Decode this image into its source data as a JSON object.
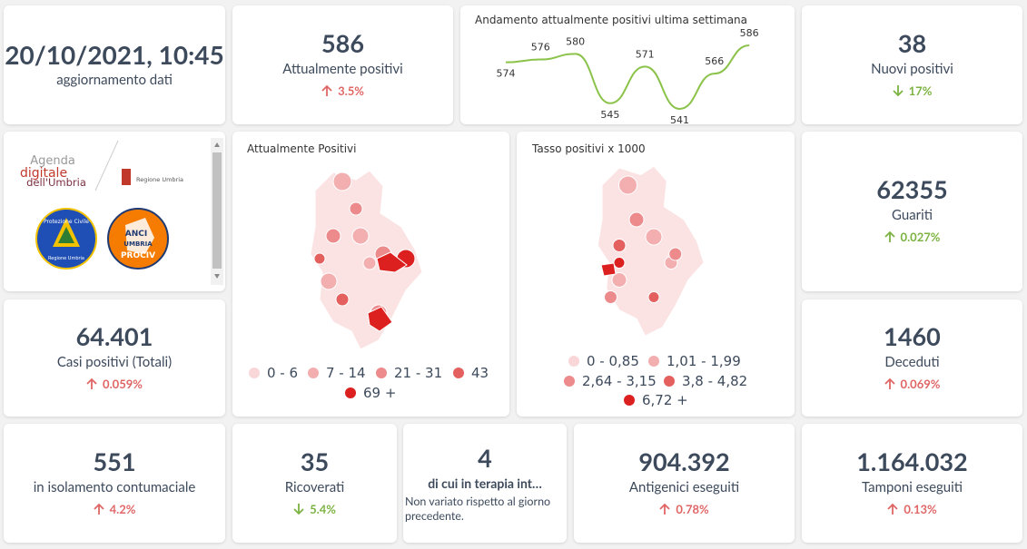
{
  "kpis": [
    {
      "value": "20/10/2021, 10:45",
      "label": "aggiornamento dati"
    },
    {
      "value": 586,
      "label": "Attualmente positivi",
      "change": "3.5%",
      "direction": "up",
      "color": "#e06666"
    },
    {
      "value": 38,
      "label": "Nuovi positivi",
      "change": "17%",
      "direction": "down",
      "color": "#7cb342"
    },
    {
      "value": 62355,
      "label": "Guariti",
      "change": "0.027%",
      "direction": "up",
      "color": "#7cb342"
    },
    {
      "value": "64.401",
      "label": "Casi positivi (Totali)",
      "change": "0.059%",
      "direction": "up",
      "color": "#e06666"
    },
    {
      "value": 1460,
      "label": "Deceduti",
      "change": "0.069%",
      "direction": "up",
      "color": "#e06666"
    },
    {
      "value": 551,
      "label": "in isolamento contumaciale",
      "change": "4.2%",
      "direction": "up",
      "color": "#e06666"
    },
    {
      "value": 35,
      "label": "Ricoverati",
      "change": "5.4%",
      "direction": "down",
      "color": "#7cb342"
    },
    {
      "value": 4,
      "label": "di cui in terapia int…",
      "note": "Non variato rispetto al giorno precedente."
    },
    {
      "value": "904.392",
      "label": "Antigenici eseguiti",
      "change": "0.78%",
      "direction": "up",
      "color": "#e06666"
    },
    {
      "value": "1.164.032",
      "label": "Tamponi eseguiti",
      "change": "0.13%",
      "direction": "up",
      "color": "#e06666"
    }
  ],
  "trend": {
    "type": "line",
    "title": "Andamento attualmente positivi ultima settimana",
    "values": [
      574,
      576,
      580,
      545,
      571,
      541,
      566,
      586
    ],
    "color": "#8bc34a"
  },
  "maps": [
    {
      "title": "Attualmente Positivi",
      "legend": [
        {
          "label": "0 - 6",
          "color": "#f9d6d8"
        },
        {
          "label": "7 - 14",
          "color": "#f3aeb0"
        },
        {
          "label": "21 - 31",
          "color": "#ec8a8c"
        },
        {
          "label": "43",
          "color": "#e4605f"
        },
        {
          "label": "69 +",
          "color": "#dc2020"
        }
      ]
    },
    {
      "title": "Tasso positivi x 1000",
      "legend": [
        {
          "label": "0 - 0,85",
          "color": "#f9d6d8"
        },
        {
          "label": "1,01 - 1,99",
          "color": "#f3aeb0"
        },
        {
          "label": "2,64 - 3,15",
          "color": "#ec8a8c"
        },
        {
          "label": "3,8 - 4,82",
          "color": "#e4605f"
        },
        {
          "label": "6,72 +",
          "color": "#dc2020"
        }
      ]
    }
  ],
  "logos": {
    "agenda": [
      "Agenda",
      "digitale",
      "dell'Umbria"
    ],
    "regione": "Regione Umbria",
    "protezione": [
      "Protezione Civile",
      "Regione Umbria"
    ],
    "anci": [
      "ANCI",
      "UMBRIA",
      "PROCIV"
    ]
  }
}
